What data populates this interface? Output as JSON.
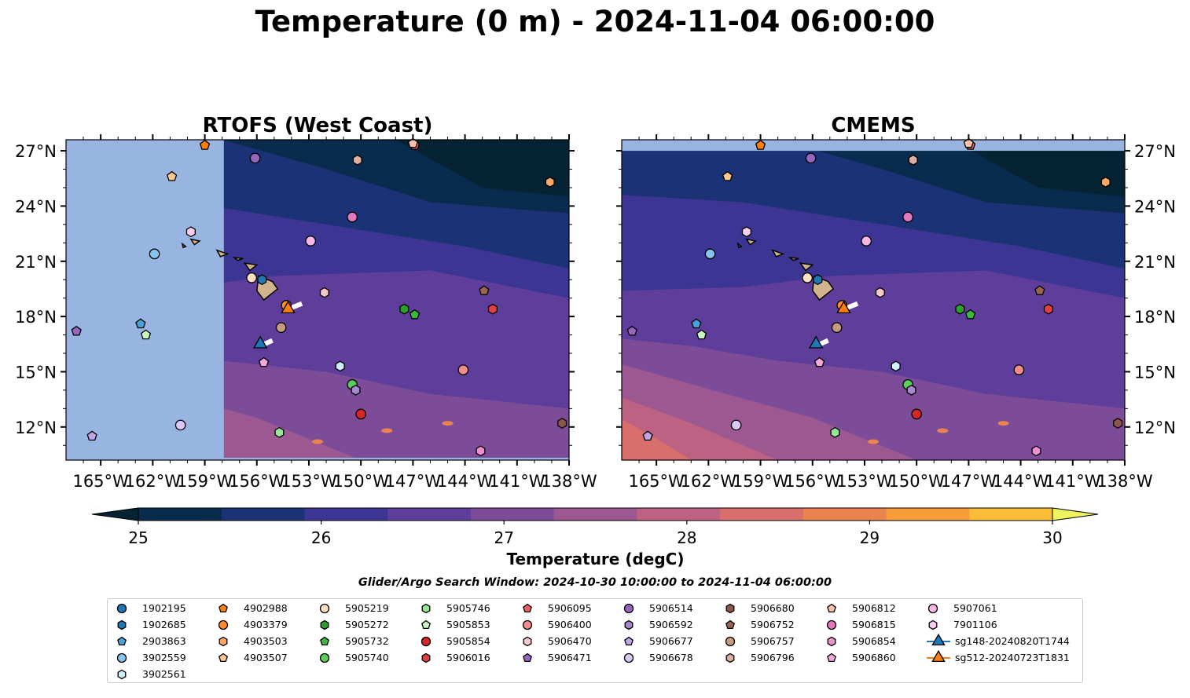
{
  "title": "Temperature (0 m) - 2024-11-04 06:00:00",
  "panels": [
    {
      "title": "RTOFS (West Coast)",
      "model_east_boundary_lon": -157.9
    },
    {
      "title": "CMEMS",
      "model_north_boundary_lat": 27.0
    }
  ],
  "colorbar": {
    "label": "Temperature (degC)",
    "ticks": [
      "25",
      "26",
      "27",
      "28",
      "29",
      "30"
    ],
    "range": [
      25,
      30
    ],
    "step": 0.5,
    "extend": "both",
    "colors": [
      "#062333",
      "#082b4e",
      "#1b3277",
      "#3c3594",
      "#5e3e9a",
      "#7c4c98",
      "#9d5891",
      "#bd6282",
      "#d86f6c",
      "#ea8350",
      "#f89b39",
      "#fbbd38",
      "#eef45d"
    ],
    "land_color": "#d2b48c",
    "missing_color": "#98b4e0"
  },
  "search_window": "Glider/Argo Search Window: 2024-10-30 10:00:00 to 2024-11-04 06:00:00",
  "chart_data": {
    "type": "map",
    "extent": {
      "lon": [
        -167,
        -138
      ],
      "lat": [
        10.2,
        27.6
      ]
    },
    "x_ticks": [
      "165°W",
      "162°W",
      "159°W",
      "156°W",
      "153°W",
      "150°W",
      "147°W",
      "144°W",
      "141°W",
      "138°W"
    ],
    "x_tick_values": [
      -165,
      -162,
      -159,
      -156,
      -153,
      -150,
      -147,
      -144,
      -141,
      -138
    ],
    "y_ticks": [
      "12°N",
      "15°N",
      "18°N",
      "21°N",
      "24°N",
      "27°N"
    ],
    "y_tick_values": [
      12,
      15,
      18,
      21,
      24,
      27
    ],
    "legend_location": "bottom",
    "floats": [
      {
        "id": "1902195",
        "marker": "circle",
        "color": "#1f77b4",
        "lon": null,
        "lat": null
      },
      {
        "id": "1902685",
        "marker": "hexagon",
        "color": "#1f77b4",
        "lon": -155.7,
        "lat": 20.0
      },
      {
        "id": "2903863",
        "marker": "pentagon",
        "color": "#4aa3d8",
        "lon": -162.7,
        "lat": 17.6
      },
      {
        "id": "3902559",
        "marker": "circle",
        "color": "#87c5ec",
        "lon": -161.9,
        "lat": 21.4
      },
      {
        "id": "3902561",
        "marker": "hexagon",
        "color": "#cdeefa",
        "lon": -151.2,
        "lat": 15.3
      },
      {
        "id": "4902988",
        "marker": "pentagon",
        "color": "#ff7f0e",
        "lon": -159.0,
        "lat": 27.3
      },
      {
        "id": "4903379",
        "marker": "circle",
        "color": "#ff8c28",
        "lon": -154.3,
        "lat": 18.6
      },
      {
        "id": "4903503",
        "marker": "hexagon",
        "color": "#ffa863",
        "lon": -139.1,
        "lat": 25.3
      },
      {
        "id": "4903507",
        "marker": "pentagon",
        "color": "#ffc890",
        "lon": -160.9,
        "lat": 25.6
      },
      {
        "id": "5905219",
        "marker": "circle",
        "color": "#ffe0c0",
        "lon": -156.3,
        "lat": 20.1
      },
      {
        "id": "5905272",
        "marker": "hexagon",
        "color": "#2ca02c",
        "lon": -147.5,
        "lat": 18.4
      },
      {
        "id": "5905732",
        "marker": "pentagon",
        "color": "#3cb83c",
        "lon": -146.9,
        "lat": 18.1
      },
      {
        "id": "5905740",
        "marker": "circle",
        "color": "#5ccc5c",
        "lon": -150.5,
        "lat": 14.3
      },
      {
        "id": "5905746",
        "marker": "hexagon",
        "color": "#98e698",
        "lon": -154.7,
        "lat": 11.7
      },
      {
        "id": "5905853",
        "marker": "pentagon",
        "color": "#c8f5c0",
        "lon": -162.4,
        "lat": 17.0
      },
      {
        "id": "5905854",
        "marker": "circle",
        "color": "#d62728",
        "lon": -150.0,
        "lat": 12.7
      },
      {
        "id": "5906016",
        "marker": "hexagon",
        "color": "#e04040",
        "lon": -142.4,
        "lat": 18.4
      },
      {
        "id": "5906095",
        "marker": "pentagon",
        "color": "#ea6060",
        "lon": -146.9,
        "lat": 27.3
      },
      {
        "id": "5906400",
        "marker": "circle",
        "color": "#f48c8c",
        "lon": -144.1,
        "lat": 15.1
      },
      {
        "id": "5906470",
        "marker": "hexagon",
        "color": "#fac8c8",
        "lon": -152.1,
        "lat": 19.3
      },
      {
        "id": "5906471",
        "marker": "pentagon",
        "color": "#9467bd",
        "lon": -166.4,
        "lat": 17.2
      },
      {
        "id": "5906514",
        "marker": "circle",
        "color": "#9467bd",
        "lon": -156.1,
        "lat": 26.6
      },
      {
        "id": "5906592",
        "marker": "hexagon",
        "color": "#a787ce",
        "lon": -150.3,
        "lat": 14.0
      },
      {
        "id": "5906677",
        "marker": "pentagon",
        "color": "#c0a4e4",
        "lon": -165.5,
        "lat": 11.5
      },
      {
        "id": "5906678",
        "marker": "circle",
        "color": "#dcc8f5",
        "lon": -160.4,
        "lat": 12.1
      },
      {
        "id": "5906680",
        "marker": "hexagon",
        "color": "#8c564b",
        "lon": -138.4,
        "lat": 12.2
      },
      {
        "id": "5906752",
        "marker": "pentagon",
        "color": "#9a6452",
        "lon": -142.9,
        "lat": 19.4
      },
      {
        "id": "5906757",
        "marker": "circle",
        "color": "#c49c80",
        "lon": -154.6,
        "lat": 17.4
      },
      {
        "id": "5906796",
        "marker": "hexagon",
        "color": "#dcb0a0",
        "lon": -150.2,
        "lat": 26.5
      },
      {
        "id": "5906812",
        "marker": "pentagon",
        "color": "#f8c0a8",
        "lon": -147.0,
        "lat": 27.4
      },
      {
        "id": "5906815",
        "marker": "circle",
        "color": "#e377c2",
        "lon": -150.5,
        "lat": 23.4
      },
      {
        "id": "5906854",
        "marker": "hexagon",
        "color": "#ec90d0",
        "lon": -143.1,
        "lat": 10.7
      },
      {
        "id": "5906860",
        "marker": "pentagon",
        "color": "#f4a8de",
        "lon": -155.6,
        "lat": 15.5
      },
      {
        "id": "5907061",
        "marker": "circle",
        "color": "#f8b8e4",
        "lon": -152.9,
        "lat": 22.1
      },
      {
        "id": "7901106",
        "marker": "hexagon",
        "color": "#fcd0ec",
        "lon": -159.8,
        "lat": 22.6
      }
    ],
    "gliders": [
      {
        "id": "sg148-20240820T1744",
        "marker": "triangle",
        "color": "#1f77b4",
        "lon": -155.8,
        "lat": 16.5,
        "track": [
          [
            -155.1,
            16.7
          ],
          [
            -155.8,
            16.4
          ]
        ]
      },
      {
        "id": "sg512-20240723T1831",
        "marker": "triangle",
        "color": "#ff7f0e",
        "lon": -154.2,
        "lat": 18.4,
        "track": [
          [
            -153.4,
            18.7
          ],
          [
            -154.2,
            18.4
          ]
        ]
      }
    ]
  }
}
